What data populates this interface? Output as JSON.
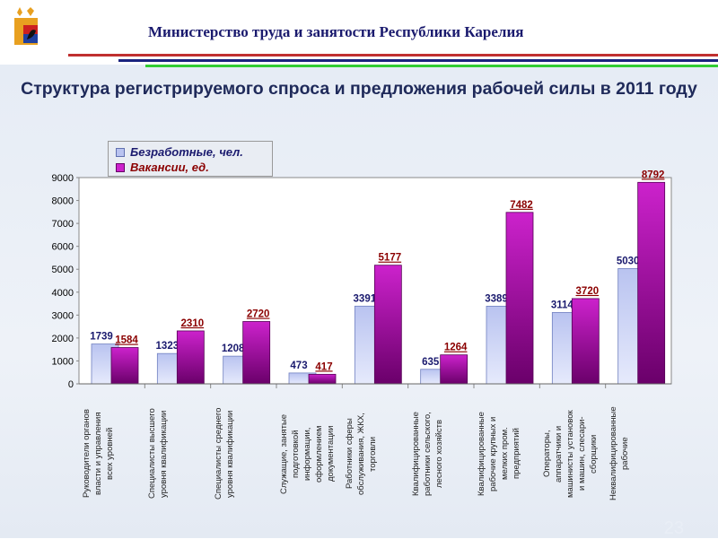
{
  "header": {
    "title": "Министерство труда и занятости Республики Карелия"
  },
  "slide": {
    "title": "Структура регистрируемого спроса и предложения рабочей силы в 2011 году",
    "page_number": "23"
  },
  "colors": {
    "series1": "#b9c3f0",
    "series1_dark": "#8c98d8",
    "series2": "#cc22cc",
    "series2_dark": "#6a006a",
    "label1": "#1a1a6e",
    "label2": "#8b0000"
  },
  "chart_data": {
    "type": "bar",
    "title": "Структура регистрируемого спроса и предложения рабочей силы в 2011 году",
    "xlabel": "",
    "ylabel": "",
    "ylim": [
      0,
      9000
    ],
    "yticks": [
      0,
      1000,
      2000,
      3000,
      4000,
      5000,
      6000,
      7000,
      8000,
      9000
    ],
    "legend_position": "top-left",
    "categories": [
      "Руководители органов\nвласти и управления\nвсех уровней",
      "Специалисты высшего\nуровня квалификации",
      "Специалисты среднего\nуровня квалификации",
      "Служащие, занятые\nподготовкой\nинформации,\nоформлением\nдокументации",
      "Работники сферы\nобслуживания, ЖКХ,\nторговли",
      "Квалифицированные\nработники сельского,\nлесного хозяйств",
      "Квалифицированные\nрабочие крупных и\nмелких пром.\nпредприятий",
      "Операторы,\nаппаратчики и\nмашинисты установок\nи машин, слесари-\nсборщики",
      "Неквалифицированные\nрабочие"
    ],
    "series": [
      {
        "name": "Безработные, чел.",
        "values": [
          1739,
          1323,
          1208,
          473,
          3391,
          635,
          3389,
          3114,
          5030
        ]
      },
      {
        "name": "Вакансии, ед.",
        "values": [
          1584,
          2310,
          2720,
          417,
          5177,
          1264,
          7482,
          3720,
          8792
        ]
      }
    ]
  }
}
